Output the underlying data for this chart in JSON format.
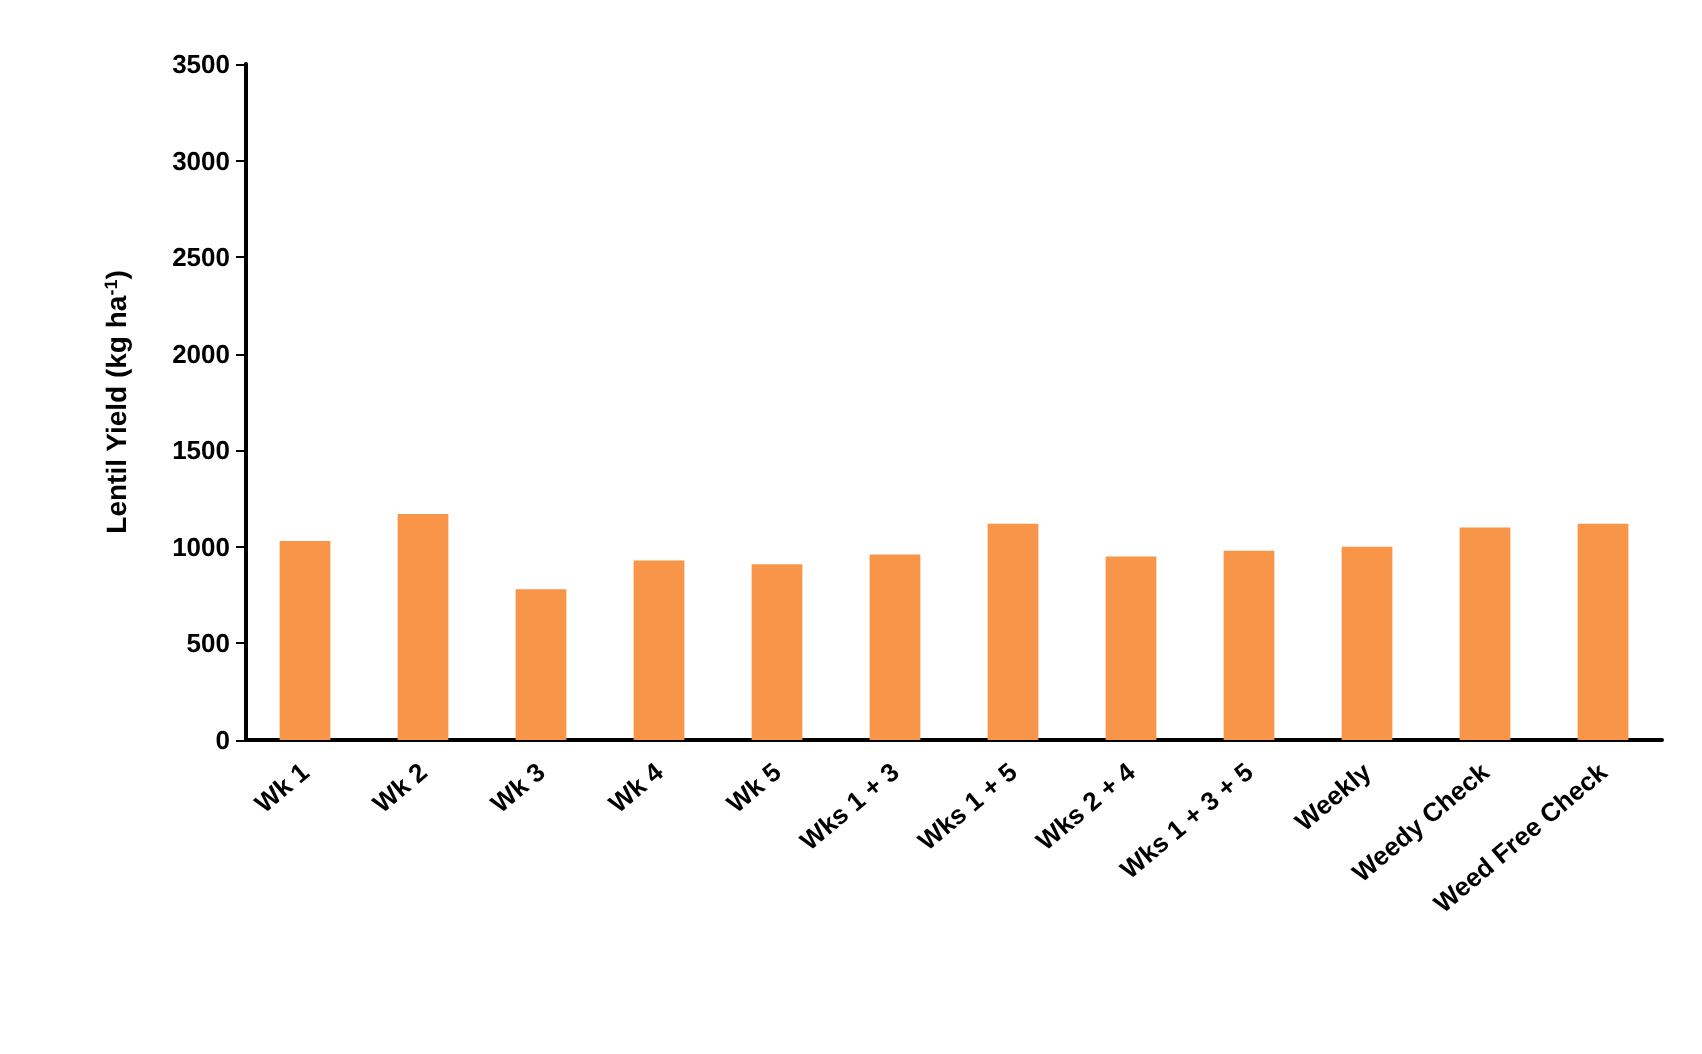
{
  "chart_data": {
    "type": "bar",
    "ylabel": "Lentil Yield (kg ha$^{-1}$)",
    "categories": [
      "Wk 1",
      "Wk 2",
      "Wk 3",
      "Wk 4",
      "Wk 5",
      "Wks 1 + 3",
      "Wks 1 + 5",
      "Wks 2 + 4",
      "Wks 1 + 3 + 5",
      "Weekly",
      "Weedy Check",
      "Weed Free Check"
    ],
    "values": [
      1030,
      1170,
      780,
      930,
      910,
      960,
      1120,
      950,
      980,
      1000,
      1100,
      1120
    ],
    "color": "#f89549",
    "ylim": [
      0,
      3500
    ],
    "yticks": [
      0,
      500,
      1000,
      1500,
      2000,
      2500,
      3000,
      3500
    ],
    "grid": false
  }
}
